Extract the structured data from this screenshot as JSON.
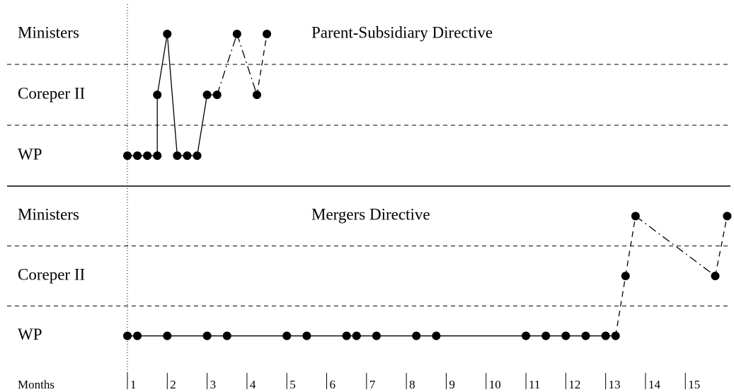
{
  "chart_data": [
    {
      "type": "line",
      "title": "Parent-Subsidiary Directive",
      "yticks": [
        {
          "value": 0,
          "label": "WP"
        },
        {
          "value": 1,
          "label": "Coreper II"
        },
        {
          "value": 2,
          "label": "Ministers"
        }
      ],
      "ylim": [
        -0.5,
        2.5
      ],
      "xlim": [
        1,
        16.15
      ],
      "color": "#000000",
      "series": [
        {
          "x": [
            1,
            1.25,
            1.5,
            1.75,
            1.75,
            2,
            2.25,
            2.5,
            2.75,
            3,
            3.25,
            3.75,
            4.25,
            4.5
          ],
          "values": [
            0,
            0,
            0,
            0,
            1,
            2,
            0,
            0,
            0,
            1,
            1,
            2,
            1,
            2
          ],
          "segment_styles": [
            "solid",
            "solid",
            "solid",
            "solid",
            "solid",
            "solid",
            "solid",
            "solid",
            "solid",
            "solid",
            "dashdot",
            "dashdot",
            "dashed"
          ]
        }
      ]
    },
    {
      "type": "line",
      "title": "Mergers Directive",
      "yticks": [
        {
          "value": 0,
          "label": "WP"
        },
        {
          "value": 1,
          "label": "Coreper II"
        },
        {
          "value": 2,
          "label": "Ministers"
        }
      ],
      "ylim": [
        -0.5,
        2.5
      ],
      "xlim": [
        1,
        16.15
      ],
      "color": "#000000",
      "x_label": "Months",
      "xticks": [
        1,
        2,
        3,
        4,
        5,
        6,
        7,
        8,
        9,
        10,
        11,
        12,
        13,
        14,
        15
      ],
      "series": [
        {
          "x": [
            1,
            1.25,
            2,
            3,
            3.5,
            5,
            5.5,
            6.5,
            6.75,
            7.25,
            8.25,
            8.75,
            11,
            11.5,
            12,
            12.5,
            13,
            13.25,
            13.5,
            13.75,
            15.75,
            16.05
          ],
          "values": [
            0,
            0,
            0,
            0,
            0,
            0,
            0,
            0,
            0,
            0,
            0,
            0,
            0,
            0,
            0,
            0,
            0,
            0,
            1,
            2,
            1,
            2
          ],
          "segment_styles": [
            "solid",
            "solid",
            "solid",
            "solid",
            "solid",
            "solid",
            "solid",
            "solid",
            "solid",
            "solid",
            "solid",
            "solid",
            "solid",
            "solid",
            "solid",
            "solid",
            "solid",
            "dashed",
            "dashed",
            "dashdot",
            "dashed"
          ]
        }
      ]
    }
  ]
}
